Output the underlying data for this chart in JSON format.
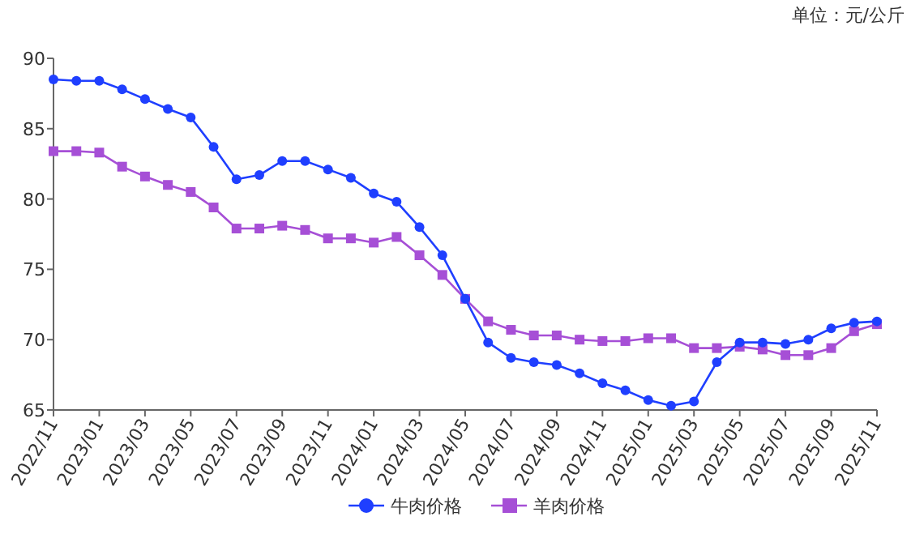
{
  "chart_data": {
    "type": "line",
    "categories": [
      "2022/11",
      null,
      "2023/01",
      null,
      "2023/03",
      null,
      "2023/05",
      null,
      "2023/07",
      null,
      "2023/09",
      null,
      "2023/11",
      null,
      "2024/01",
      null,
      "2024/03",
      null,
      "2024/05",
      null,
      "2024/07",
      null,
      "2024/09",
      null,
      "2024/11",
      null,
      "2025/01",
      null,
      "2025/03",
      null,
      "2025/05",
      null,
      "2025/07",
      null,
      "2025/09",
      null,
      "2025/11"
    ],
    "series": [
      {
        "name": "牛肉价格",
        "color": "#1f3fff",
        "marker": "circle",
        "values": [
          88.5,
          88.4,
          88.4,
          87.8,
          87.1,
          86.4,
          85.8,
          83.7,
          81.4,
          81.7,
          82.7,
          82.7,
          82.1,
          81.5,
          80.4,
          79.8,
          78.0,
          76.0,
          72.9,
          69.8,
          68.7,
          68.4,
          68.2,
          67.6,
          66.9,
          66.4,
          65.7,
          65.3,
          65.6,
          68.4,
          69.8,
          69.8,
          69.7,
          70.0,
          70.8,
          71.2,
          71.3
        ]
      },
      {
        "name": "羊肉价格",
        "color": "#a64fd6",
        "marker": "square",
        "values": [
          83.4,
          83.4,
          83.3,
          82.3,
          81.6,
          81.0,
          80.5,
          79.4,
          77.9,
          77.9,
          78.1,
          77.8,
          77.2,
          77.2,
          76.9,
          77.3,
          76.0,
          74.6,
          72.9,
          71.3,
          70.7,
          70.3,
          70.3,
          70.0,
          69.9,
          69.9,
          70.1,
          70.1,
          69.4,
          69.4,
          69.5,
          69.3,
          68.9,
          68.9,
          69.4,
          70.6,
          71.1
        ]
      }
    ],
    "ylim": [
      65,
      90
    ],
    "yticks": [
      65,
      70,
      75,
      80,
      85,
      90
    ],
    "annotations": [
      "单位：元/公斤"
    ],
    "legend": "bottom",
    "grid": false,
    "line_style": "solid"
  }
}
